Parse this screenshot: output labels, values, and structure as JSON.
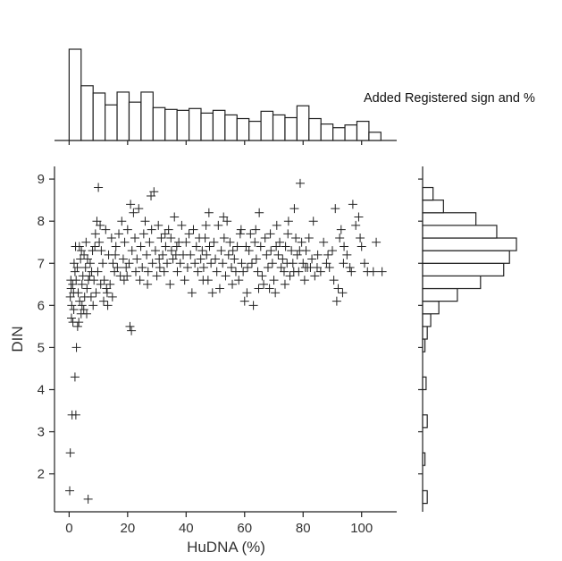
{
  "annotation": "Added Registered sign and %",
  "chart_data": {
    "type": "scatter",
    "title": "",
    "xlabel": "HuDNA (%)",
    "ylabel": "DIN",
    "xlim": [
      -5,
      112
    ],
    "ylim": [
      1.1,
      9.3
    ],
    "xticks": [
      0,
      20,
      40,
      60,
      80,
      100
    ],
    "yticks": [
      2,
      3,
      4,
      5,
      6,
      7,
      8,
      9
    ],
    "grid": false,
    "marker": "plus",
    "marker_color": "#222222",
    "points": [
      [
        0.2,
        1.6
      ],
      [
        0.4,
        2.5
      ],
      [
        1.0,
        3.4
      ],
      [
        2.3,
        3.4
      ],
      [
        2.0,
        4.3
      ],
      [
        2.5,
        5.0
      ],
      [
        6.5,
        1.4
      ],
      [
        0.8,
        5.7
      ],
      [
        1.3,
        5.6
      ],
      [
        2.9,
        5.5
      ],
      [
        1.6,
        5.9
      ],
      [
        3.3,
        5.6
      ],
      [
        4.1,
        5.8
      ],
      [
        5.0,
        5.9
      ],
      [
        4.4,
        6.0
      ],
      [
        6.0,
        5.8
      ],
      [
        0.4,
        6.2
      ],
      [
        0.7,
        6.4
      ],
      [
        1.2,
        6.5
      ],
      [
        1.5,
        6.3
      ],
      [
        0.6,
        6.6
      ],
      [
        2.0,
        6.8
      ],
      [
        2.4,
        6.6
      ],
      [
        2.8,
        6.9
      ],
      [
        3.1,
        6.3
      ],
      [
        0.9,
        6.0
      ],
      [
        1.7,
        7.0
      ],
      [
        2.2,
        7.4
      ],
      [
        3.5,
        7.4
      ],
      [
        3.9,
        7.1
      ],
      [
        4.2,
        7.3
      ],
      [
        4.7,
        6.7
      ],
      [
        5.1,
        7.2
      ],
      [
        5.6,
        6.9
      ],
      [
        6.1,
        6.4
      ],
      [
        6.6,
        6.6
      ],
      [
        3.6,
        6.1
      ],
      [
        4.4,
        6.5
      ],
      [
        5.3,
        6.2
      ],
      [
        5.8,
        7.5
      ],
      [
        6.3,
        7.1
      ],
      [
        7.0,
        6.7
      ],
      [
        7.2,
        7.0
      ],
      [
        7.7,
        6.8
      ],
      [
        8.0,
        7.3
      ],
      [
        8.5,
        6.6
      ],
      [
        9.0,
        7.7
      ],
      [
        9.5,
        8.0
      ],
      [
        9.8,
        6.8
      ],
      [
        10.3,
        7.5
      ],
      [
        10.8,
        6.5
      ],
      [
        11.0,
        7.3
      ],
      [
        11.5,
        7.0
      ],
      [
        12.0,
        6.6
      ],
      [
        12.5,
        7.8
      ],
      [
        13.0,
        6.3
      ],
      [
        10.0,
        8.8
      ],
      [
        13.5,
        7.2
      ],
      [
        14.0,
        6.5
      ],
      [
        14.5,
        7.6
      ],
      [
        15.0,
        7.0
      ],
      [
        15.5,
        6.8
      ],
      [
        16.0,
        7.4
      ],
      [
        16.5,
        6.9
      ],
      [
        17.0,
        7.7
      ],
      [
        17.5,
        6.7
      ],
      [
        7.5,
        6.2
      ],
      [
        8.2,
        6.0
      ],
      [
        9.2,
        6.3
      ],
      [
        11.8,
        6.1
      ],
      [
        13.2,
        6.0
      ],
      [
        12.8,
        6.4
      ],
      [
        8.8,
        7.4
      ],
      [
        10.6,
        7.9
      ],
      [
        14.8,
        6.2
      ],
      [
        15.8,
        7.2
      ],
      [
        18.0,
        8.0
      ],
      [
        18.5,
        7.1
      ],
      [
        19.0,
        7.5
      ],
      [
        19.5,
        6.9
      ],
      [
        20.0,
        7.8
      ],
      [
        20.5,
        7.0
      ],
      [
        21.0,
        8.4
      ],
      [
        21.5,
        7.3
      ],
      [
        22.0,
        8.2
      ],
      [
        22.5,
        7.6
      ],
      [
        20.8,
        5.5
      ],
      [
        21.3,
        5.4
      ],
      [
        19.8,
        6.7
      ],
      [
        18.8,
        6.6
      ],
      [
        22.8,
        6.8
      ],
      [
        23.2,
        7.1
      ],
      [
        23.8,
        8.3
      ],
      [
        24.5,
        7.4
      ],
      [
        25.0,
        6.9
      ],
      [
        25.5,
        7.7
      ],
      [
        26.0,
        8.0
      ],
      [
        26.5,
        7.2
      ],
      [
        27.0,
        6.8
      ],
      [
        27.5,
        7.5
      ],
      [
        28.0,
        8.6
      ],
      [
        28.5,
        7.0
      ],
      [
        29.0,
        8.7
      ],
      [
        29.5,
        7.3
      ],
      [
        30.0,
        6.7
      ],
      [
        30.5,
        7.9
      ],
      [
        24.2,
        6.6
      ],
      [
        26.8,
        6.5
      ],
      [
        28.2,
        7.8
      ],
      [
        30.8,
        7.1
      ],
      [
        31.0,
        6.9
      ],
      [
        31.5,
        7.6
      ],
      [
        32.0,
        7.2
      ],
      [
        32.5,
        6.8
      ],
      [
        33.0,
        7.4
      ],
      [
        33.5,
        7.0
      ],
      [
        34.0,
        7.8
      ],
      [
        34.5,
        6.5
      ],
      [
        35.0,
        7.3
      ],
      [
        35.5,
        7.1
      ],
      [
        36.0,
        8.1
      ],
      [
        36.5,
        7.2
      ],
      [
        37.0,
        6.8
      ],
      [
        37.5,
        7.5
      ],
      [
        38.0,
        7.0
      ],
      [
        38.5,
        7.9
      ],
      [
        32.8,
        7.7
      ],
      [
        34.8,
        7.6
      ],
      [
        36.8,
        7.4
      ],
      [
        39.0,
        7.2
      ],
      [
        39.5,
        6.6
      ],
      [
        40.0,
        7.5
      ],
      [
        40.5,
        6.9
      ],
      [
        41.0,
        7.7
      ],
      [
        41.5,
        7.2
      ],
      [
        42.0,
        6.3
      ],
      [
        42.5,
        7.8
      ],
      [
        43.0,
        7.0
      ],
      [
        43.5,
        7.4
      ],
      [
        44.0,
        6.8
      ],
      [
        44.5,
        7.6
      ],
      [
        45.0,
        7.1
      ],
      [
        45.5,
        7.3
      ],
      [
        46.0,
        6.9
      ],
      [
        46.5,
        7.6
      ],
      [
        47.0,
        7.2
      ],
      [
        47.5,
        6.6
      ],
      [
        48.0,
        7.4
      ],
      [
        48.5,
        7.0
      ],
      [
        49.0,
        6.3
      ],
      [
        49.5,
        7.5
      ],
      [
        50.0,
        7.1
      ],
      [
        50.5,
        6.8
      ],
      [
        51.0,
        7.9
      ],
      [
        51.5,
        6.4
      ],
      [
        52.0,
        7.3
      ],
      [
        52.5,
        7.0
      ],
      [
        53.0,
        7.6
      ],
      [
        53.5,
        6.7
      ],
      [
        54.0,
        8.0
      ],
      [
        54.5,
        7.2
      ],
      [
        55.0,
        7.5
      ],
      [
        55.5,
        6.9
      ],
      [
        56.0,
        7.3
      ],
      [
        56.5,
        7.1
      ],
      [
        57.0,
        6.8
      ],
      [
        57.5,
        7.4
      ],
      [
        58.0,
        6.6
      ],
      [
        58.5,
        7.7
      ],
      [
        59.0,
        7.0
      ],
      [
        59.5,
        6.8
      ],
      [
        60.0,
        6.1
      ],
      [
        60.5,
        7.4
      ],
      [
        61.0,
        6.9
      ],
      [
        61.5,
        7.3
      ],
      [
        62.0,
        7.7
      ],
      [
        62.5,
        7.0
      ],
      [
        63.0,
        6.0
      ],
      [
        63.5,
        7.5
      ],
      [
        64.0,
        7.1
      ],
      [
        64.5,
        6.8
      ],
      [
        65.0,
        8.2
      ],
      [
        65.5,
        7.4
      ],
      [
        66.0,
        6.7
      ],
      [
        66.5,
        6.5
      ],
      [
        67.0,
        7.6
      ],
      [
        67.5,
        7.2
      ],
      [
        68.0,
        6.9
      ],
      [
        68.5,
        6.4
      ],
      [
        69.0,
        7.3
      ],
      [
        69.5,
        7.0
      ],
      [
        70.0,
        6.6
      ],
      [
        70.5,
        6.3
      ],
      [
        71.0,
        7.9
      ],
      [
        71.5,
        7.2
      ],
      [
        72.0,
        7.5
      ],
      [
        72.5,
        6.9
      ],
      [
        73.0,
        7.1
      ],
      [
        73.5,
        6.8
      ],
      [
        74.0,
        7.4
      ],
      [
        74.5,
        7.0
      ],
      [
        75.0,
        8.0
      ],
      [
        75.5,
        6.7
      ],
      [
        76.0,
        7.3
      ],
      [
        76.5,
        7.0
      ],
      [
        77.0,
        8.3
      ],
      [
        77.5,
        7.6
      ],
      [
        78.0,
        7.2
      ],
      [
        78.5,
        6.8
      ],
      [
        79.0,
        8.9
      ],
      [
        79.5,
        7.5
      ],
      [
        80.0,
        7.0
      ],
      [
        80.5,
        6.6
      ],
      [
        81.0,
        7.3
      ],
      [
        81.5,
        6.9
      ],
      [
        82.0,
        7.6
      ],
      [
        82.5,
        6.9
      ],
      [
        83.0,
        7.1
      ],
      [
        83.5,
        8.0
      ],
      [
        84.0,
        6.7
      ],
      [
        85.0,
        7.2
      ],
      [
        86.0,
        6.8
      ],
      [
        87.0,
        7.5
      ],
      [
        88.0,
        7.0
      ],
      [
        89.0,
        6.9
      ],
      [
        90.0,
        7.3
      ],
      [
        90.5,
        6.6
      ],
      [
        91.0,
        8.3
      ],
      [
        91.5,
        6.1
      ],
      [
        92.0,
        6.4
      ],
      [
        92.5,
        7.6
      ],
      [
        93.0,
        7.8
      ],
      [
        93.5,
        6.3
      ],
      [
        94.0,
        7.4
      ],
      [
        95.0,
        7.2
      ],
      [
        96.0,
        6.9
      ],
      [
        97.0,
        8.4
      ],
      [
        98.0,
        7.9
      ],
      [
        99.0,
        8.1
      ],
      [
        100.0,
        7.4
      ],
      [
        101.0,
        7.0
      ],
      [
        102.0,
        6.8
      ],
      [
        104.0,
        6.8
      ],
      [
        105.0,
        7.5
      ],
      [
        107.0,
        6.8
      ],
      [
        96.5,
        6.8
      ],
      [
        45.8,
        6.6
      ],
      [
        46.8,
        7.9
      ],
      [
        47.8,
        8.2
      ],
      [
        52.8,
        8.1
      ],
      [
        55.8,
        6.5
      ],
      [
        58.8,
        7.8
      ],
      [
        60.8,
        6.3
      ],
      [
        63.8,
        7.8
      ],
      [
        64.8,
        6.4
      ],
      [
        68.8,
        7.7
      ],
      [
        70.8,
        7.4
      ],
      [
        73.8,
        6.5
      ],
      [
        74.8,
        7.7
      ],
      [
        76.8,
        6.8
      ],
      [
        78.8,
        7.3
      ],
      [
        80.8,
        6.9
      ],
      [
        84.8,
        6.9
      ],
      [
        88.5,
        7.2
      ],
      [
        93.8,
        7.0
      ],
      [
        99.5,
        7.6
      ]
    ],
    "marginal_x": {
      "type": "bar",
      "orientation": "vertical",
      "bin_edges": [
        0,
        4.1,
        8.2,
        12.3,
        16.4,
        20.5,
        24.6,
        28.7,
        32.8,
        36.9,
        41.0,
        45.1,
        49.2,
        53.3,
        57.4,
        61.5,
        65.6,
        69.7,
        73.8,
        77.9,
        82.0,
        86.1,
        90.2,
        94.3,
        98.4,
        102.5,
        106.6
      ],
      "values": [
        100,
        60,
        52,
        39,
        53,
        42,
        53,
        36,
        34,
        33,
        35,
        30,
        33,
        28,
        24,
        21,
        32,
        28,
        25,
        38,
        24,
        18,
        14,
        17,
        21,
        9,
        6
      ]
    },
    "marginal_y": {
      "type": "bar",
      "orientation": "horizontal",
      "bin_edges": [
        1.3,
        1.6,
        1.9,
        2.2,
        2.5,
        2.8,
        3.1,
        3.4,
        3.7,
        4.0,
        4.3,
        4.6,
        4.9,
        5.2,
        5.5,
        5.8,
        6.1,
        6.4,
        6.7,
        7.0,
        7.3,
        7.6,
        7.9,
        8.2,
        8.5,
        8.8
      ],
      "values": [
        4,
        0,
        0,
        2,
        0,
        0,
        4,
        0,
        0,
        3,
        0,
        0,
        2,
        4,
        7,
        14,
        30,
        50,
        70,
        75,
        81,
        64,
        46,
        18,
        9,
        5
      ]
    }
  }
}
